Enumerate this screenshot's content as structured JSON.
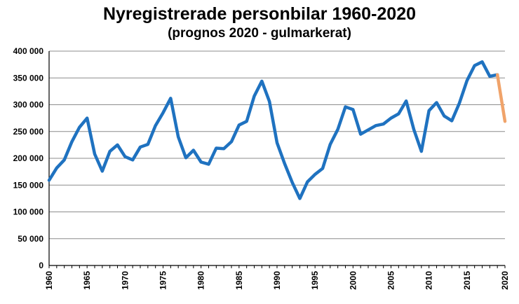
{
  "chart_data": {
    "type": "line",
    "title": "Nyregistrerade personbilar 1960-2020",
    "subtitle": "(prognos 2020 - gulmarkerat)",
    "xlabel": "",
    "ylabel": "",
    "xlim": [
      1960,
      2020
    ],
    "ylim": [
      0,
      400000
    ],
    "y_ticks": [
      0,
      50000,
      100000,
      150000,
      200000,
      250000,
      300000,
      350000,
      400000
    ],
    "y_tick_labels": [
      "0",
      "50 000",
      "100 000",
      "150 000",
      "200 000",
      "250 000",
      "300 000",
      "350 000",
      "400 000"
    ],
    "x_ticks": [
      1960,
      1965,
      1970,
      1975,
      1980,
      1985,
      1990,
      1995,
      2000,
      2005,
      2010,
      2015,
      2020
    ],
    "x_tick_labels": [
      "1960",
      "1965",
      "1970",
      "1975",
      "1980",
      "1985",
      "1990",
      "1995",
      "2000",
      "2005",
      "2010",
      "2015",
      "2020"
    ],
    "grid": true,
    "legend": "none",
    "series": [
      {
        "color": "#1f72c0",
        "x": [
          1960,
          1961,
          1962,
          1963,
          1964,
          1965,
          1966,
          1967,
          1968,
          1969,
          1970,
          1971,
          1972,
          1973,
          1974,
          1975,
          1976,
          1977,
          1978,
          1979,
          1980,
          1981,
          1982,
          1983,
          1984,
          1985,
          1986,
          1987,
          1988,
          1989,
          1990,
          1991,
          1992,
          1993,
          1994,
          1995,
          1996,
          1997,
          1998,
          1999,
          2000,
          2001,
          2002,
          2003,
          2004,
          2005,
          2006,
          2007,
          2008,
          2009,
          2010,
          2011,
          2012,
          2013,
          2014,
          2015,
          2016,
          2017,
          2018,
          2019
        ],
        "y": [
          159000,
          182000,
          197000,
          231000,
          258000,
          275000,
          208000,
          176000,
          213000,
          225000,
          203000,
          197000,
          221000,
          226000,
          261000,
          285000,
          312000,
          240000,
          201000,
          215000,
          193000,
          189000,
          219000,
          218000,
          231000,
          262000,
          269000,
          316000,
          344000,
          306000,
          229000,
          190000,
          155000,
          125000,
          156000,
          170000,
          181000,
          226000,
          254000,
          296000,
          291000,
          245000,
          253000,
          261000,
          264000,
          275000,
          283000,
          307000,
          254000,
          213000,
          289000,
          304000,
          279000,
          270000,
          303000,
          345000,
          373000,
          380000,
          353000,
          356000
        ]
      },
      {
        "color": "#f0a36a",
        "x": [
          2019,
          2020
        ],
        "y": [
          356000,
          269000
        ]
      }
    ]
  }
}
